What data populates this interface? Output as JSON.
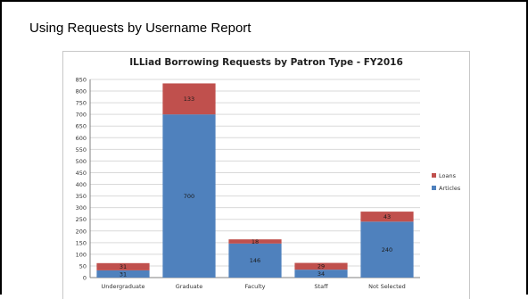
{
  "slide": {
    "title": "Using Requests by Username Report"
  },
  "colors": {
    "articles": "#4f81bd",
    "loans": "#c0504d",
    "gridline": "#d9d9d9",
    "axis": "#808080"
  },
  "chart_data": {
    "type": "bar",
    "stacked": true,
    "title": "ILLiad Borrowing Requests by Patron Type - FY2016",
    "xlabel": "",
    "ylabel": "",
    "categories": [
      "Undergraduate",
      "Graduate",
      "Faculty",
      "Staff",
      "Not Selected"
    ],
    "series": [
      {
        "name": "Articles",
        "values": [
          31,
          700,
          146,
          34,
          240
        ],
        "color": "#4f81bd"
      },
      {
        "name": "Loans",
        "values": [
          31,
          133,
          18,
          29,
          43
        ],
        "color": "#c0504d"
      }
    ],
    "ylim": [
      0,
      850
    ],
    "yticks": [
      0,
      50,
      100,
      150,
      200,
      250,
      300,
      350,
      400,
      450,
      500,
      550,
      600,
      650,
      700,
      750,
      800,
      850
    ],
    "grid": true,
    "legend": "right",
    "legend_order": [
      "Loans",
      "Articles"
    ]
  }
}
